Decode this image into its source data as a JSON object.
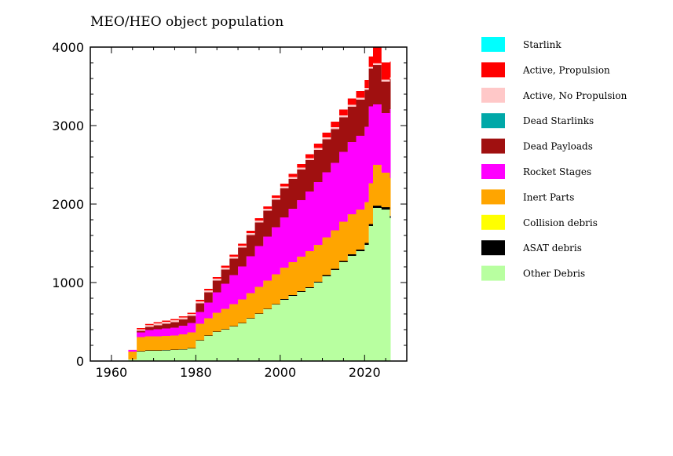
{
  "chart_data": {
    "type": "area",
    "stacked": true,
    "title": "MEO/HEO object population",
    "xlabel": "",
    "ylabel": "",
    "xlim": [
      1955,
      2030
    ],
    "ylim": [
      0,
      4000
    ],
    "xticks": [
      1960,
      1980,
      2000,
      2020
    ],
    "yticks": [
      0,
      1000,
      2000,
      3000,
      4000
    ],
    "grid": false,
    "legend_position": "right",
    "x": [
      1963,
      1964,
      1966,
      1968,
      1970,
      1972,
      1974,
      1976,
      1978,
      1980,
      1982,
      1984,
      1986,
      1988,
      1990,
      1992,
      1994,
      1996,
      1998,
      2000,
      2002,
      2004,
      2006,
      2008,
      2010,
      2012,
      2014,
      2016,
      2018,
      2020,
      2021,
      2022,
      2024,
      2026
    ],
    "series": [
      {
        "name": "Starlink",
        "color": "#00ffff",
        "values": [
          0,
          0,
          0,
          0,
          0,
          0,
          0,
          0,
          0,
          0,
          0,
          0,
          0,
          0,
          0,
          0,
          0,
          0,
          0,
          0,
          0,
          0,
          0,
          0,
          0,
          0,
          0,
          0,
          0,
          0,
          0,
          0,
          0,
          0
        ]
      },
      {
        "name": "Active, Propulsion",
        "color": "#ff0000",
        "values": [
          0,
          0,
          15,
          15,
          15,
          15,
          15,
          15,
          15,
          20,
          20,
          20,
          25,
          25,
          25,
          30,
          30,
          30,
          30,
          35,
          40,
          45,
          50,
          55,
          60,
          70,
          75,
          80,
          85,
          100,
          130,
          200,
          220,
          200
        ]
      },
      {
        "name": "Active, No Propulsion",
        "color": "#ffc8c8",
        "values": [
          0,
          5,
          20,
          22,
          25,
          25,
          25,
          25,
          25,
          25,
          25,
          25,
          25,
          25,
          25,
          25,
          25,
          25,
          25,
          25,
          25,
          25,
          25,
          25,
          25,
          25,
          25,
          25,
          25,
          25,
          25,
          25,
          25,
          25
        ]
      },
      {
        "name": "Dead Starlinks",
        "color": "#00a8a8",
        "values": [
          0,
          0,
          0,
          0,
          0,
          0,
          0,
          0,
          0,
          0,
          0,
          0,
          0,
          0,
          0,
          0,
          0,
          0,
          0,
          0,
          0,
          0,
          0,
          0,
          0,
          0,
          0,
          0,
          0,
          0,
          0,
          0,
          0,
          0
        ]
      },
      {
        "name": "Dead Payloads",
        "color": "#a01010",
        "values": [
          0,
          0,
          20,
          40,
          50,
          60,
          70,
          80,
          90,
          110,
          130,
          150,
          180,
          210,
          240,
          270,
          300,
          330,
          350,
          370,
          380,
          390,
          400,
          410,
          420,
          430,
          440,
          450,
          460,
          470,
          480,
          500,
          400,
          380
        ]
      },
      {
        "name": "Rocket Stages",
        "color": "#ff00ff",
        "values": [
          0,
          20,
          60,
          80,
          90,
          95,
          100,
          110,
          120,
          150,
          200,
          260,
          320,
          370,
          420,
          470,
          520,
          560,
          600,
          640,
          680,
          720,
          760,
          800,
          830,
          860,
          890,
          920,
          940,
          960,
          980,
          770,
          760,
          880
        ]
      },
      {
        "name": "Inert Parts",
        "color": "#ffa500",
        "values": [
          5,
          100,
          180,
          180,
          180,
          180,
          180,
          190,
          200,
          210,
          220,
          240,
          260,
          280,
          300,
          320,
          340,
          360,
          380,
          400,
          420,
          440,
          460,
          470,
          480,
          490,
          500,
          510,
          510,
          520,
          520,
          520,
          440,
          480
        ]
      },
      {
        "name": "Collision debris",
        "color": "#ffff00",
        "values": [
          0,
          0,
          0,
          0,
          0,
          0,
          0,
          0,
          0,
          0,
          0,
          0,
          0,
          0,
          0,
          0,
          0,
          0,
          0,
          0,
          0,
          0,
          0,
          0,
          0,
          0,
          0,
          0,
          0,
          0,
          0,
          0,
          0,
          0
        ]
      },
      {
        "name": "ASAT debris",
        "color": "#000000",
        "values": [
          0,
          0,
          5,
          5,
          5,
          5,
          5,
          5,
          5,
          5,
          5,
          5,
          5,
          5,
          5,
          5,
          5,
          5,
          5,
          10,
          10,
          10,
          10,
          10,
          15,
          15,
          15,
          20,
          20,
          25,
          25,
          30,
          30,
          30
        ]
      },
      {
        "name": "Other Debris",
        "color": "#b8ffa0",
        "values": [
          0,
          20,
          120,
          130,
          130,
          135,
          140,
          145,
          160,
          260,
          320,
          370,
          400,
          440,
          480,
          540,
          600,
          660,
          720,
          780,
          830,
          880,
          930,
          1000,
          1080,
          1160,
          1260,
          1340,
          1400,
          1480,
          1720,
          1950,
          1930,
          1820
        ]
      }
    ]
  }
}
